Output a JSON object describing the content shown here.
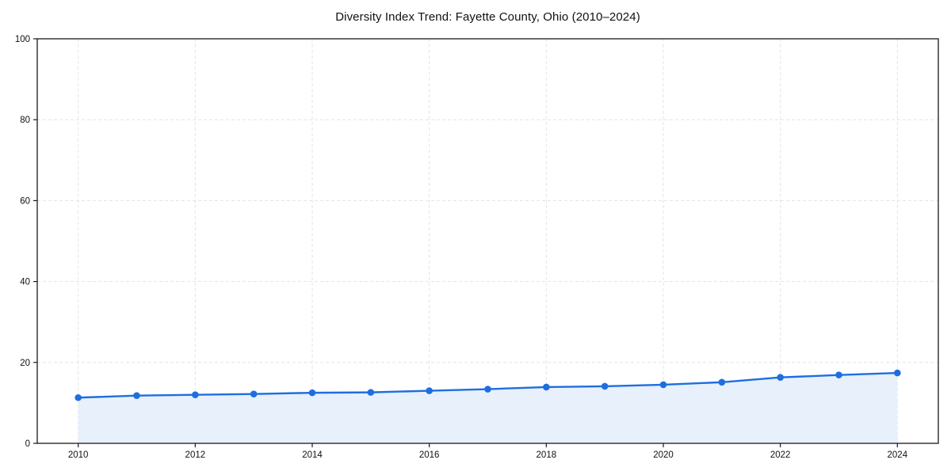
{
  "chart_data": {
    "type": "line",
    "title": "Diversity Index Trend: Fayette County, Ohio (2010–2024)",
    "xlabel": "",
    "ylabel": "",
    "x": [
      2010,
      2011,
      2012,
      2013,
      2014,
      2015,
      2016,
      2017,
      2018,
      2019,
      2020,
      2021,
      2022,
      2023,
      2024
    ],
    "series": [
      {
        "name": "Diversity Index",
        "values": [
          11.3,
          11.8,
          12.0,
          12.2,
          12.5,
          12.6,
          13.0,
          13.4,
          13.9,
          14.1,
          14.5,
          15.1,
          16.3,
          16.9,
          17.4
        ]
      }
    ],
    "xlim": [
      2009.3,
      2024.7
    ],
    "ylim": [
      0,
      100
    ],
    "x_ticks": [
      2010,
      2012,
      2014,
      2016,
      2018,
      2020,
      2022,
      2024
    ],
    "y_ticks": [
      0,
      20,
      40,
      60,
      80,
      100
    ],
    "grid": true,
    "grid_style": "dashed",
    "legend": "none",
    "marker": "circle",
    "area_fill": true,
    "colors": {
      "line": "#1e6ee0",
      "marker": "#1e6ee0",
      "fill": "#e8f0fb",
      "grid": "#e3e3e3",
      "frame": "#191919",
      "text": "#111111"
    }
  }
}
